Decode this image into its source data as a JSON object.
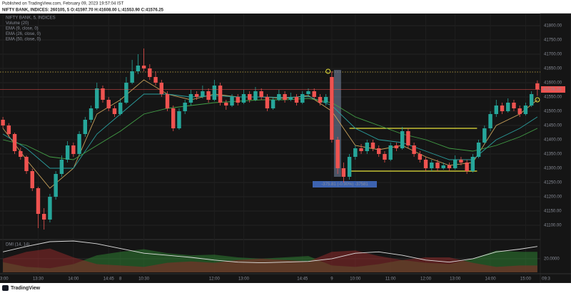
{
  "header": {
    "published": "Published on TradingView.com, February 09, 2023 19:57:04 IST",
    "symbol_line": "NIFTY BANK, INDICES: 260105, 5  O:41597.70 H:41608.00 L:41553.90 C:41576.25"
  },
  "footer": {
    "brand": "TradingView"
  },
  "chart_data": {
    "type": "candlestick",
    "legend": [
      "NIFTY BANK, 5, INDICES",
      "Volume (20)",
      "EMA (9, close, 0)",
      "EMA (26, close, 0)",
      "EMA (50, close, 0)"
    ],
    "up_color": "#26a69a",
    "down_color": "#ef5350",
    "ylim": [
      41050,
      41840
    ],
    "yticks": [
      {
        "value": 41100,
        "label": "41100.00"
      },
      {
        "value": 41150,
        "label": "41150.00"
      },
      {
        "value": 41200,
        "label": "41200.00"
      },
      {
        "value": 41250,
        "label": "41250.00"
      },
      {
        "value": 41300,
        "label": "41300.00"
      },
      {
        "value": 41350,
        "label": "41350.00"
      },
      {
        "value": 41400,
        "label": "41400.00"
      },
      {
        "value": 41450,
        "label": "41450.00"
      },
      {
        "value": 41500,
        "label": "41500.00"
      },
      {
        "value": 41550,
        "label": "41550.00"
      },
      {
        "value": 41600,
        "label": "41600.00"
      },
      {
        "value": 41650,
        "label": "41650.00"
      },
      {
        "value": 41700,
        "label": "41700.00"
      },
      {
        "value": 41750,
        "label": "41750.00"
      },
      {
        "value": 41800,
        "label": "41800.00"
      }
    ],
    "time_labels": [
      "13:00",
      "13:30",
      "14:00",
      "14:45",
      "8",
      "10:30",
      "12:00",
      "13:00",
      "14:45",
      "9",
      "10:00",
      "11:00",
      "12:00",
      "13:00",
      "14:00",
      "15:00",
      "09:3"
    ],
    "candles": [
      [
        41470,
        41480,
        41440,
        41450
      ],
      [
        41450,
        41458,
        41410,
        41420
      ],
      [
        41420,
        41425,
        41350,
        41360
      ],
      [
        41360,
        41372,
        41330,
        41340
      ],
      [
        41340,
        41345,
        41280,
        41290
      ],
      [
        41290,
        41298,
        41220,
        41230
      ],
      [
        41230,
        41235,
        41090,
        41140
      ],
      [
        41140,
        41160,
        41085,
        41120
      ],
      [
        41120,
        41210,
        41110,
        41200
      ],
      [
        41200,
        41290,
        41190,
        41280
      ],
      [
        41280,
        41345,
        41270,
        41330
      ],
      [
        41330,
        41395,
        41320,
        41380
      ],
      [
        41380,
        41390,
        41340,
        41350
      ],
      [
        41350,
        41430,
        41345,
        41420
      ],
      [
        41420,
        41480,
        41410,
        41470
      ],
      [
        41470,
        41520,
        41460,
        41510
      ],
      [
        41510,
        41600,
        41505,
        41580
      ],
      [
        41580,
        41590,
        41530,
        41540
      ],
      [
        41540,
        41550,
        41500,
        41510
      ],
      [
        41510,
        41520,
        41480,
        41490
      ],
      [
        41490,
        41545,
        41485,
        41530
      ],
      [
        41530,
        41620,
        41525,
        41600
      ],
      [
        41600,
        41680,
        41595,
        41640
      ],
      [
        41640,
        41700,
        41630,
        41660
      ],
      [
        41660,
        41720,
        41640,
        41650
      ],
      [
        41650,
        41665,
        41610,
        41620
      ],
      [
        41620,
        41640,
        41590,
        41600
      ],
      [
        41600,
        41610,
        41550,
        41560
      ],
      [
        41560,
        41570,
        41500,
        41510
      ],
      [
        41510,
        41520,
        41430,
        41440
      ],
      [
        41440,
        41510,
        41435,
        41500
      ],
      [
        41500,
        41540,
        41490,
        41530
      ],
      [
        41530,
        41575,
        41520,
        41560
      ],
      [
        41560,
        41570,
        41540,
        41550
      ],
      [
        41550,
        41590,
        41545,
        41570
      ],
      [
        41570,
        41580,
        41530,
        41540
      ],
      [
        41540,
        41610,
        41535,
        41590
      ],
      [
        41590,
        41600,
        41520,
        41530
      ],
      [
        41530,
        41540,
        41505,
        41520
      ],
      [
        41520,
        41560,
        41515,
        41550
      ],
      [
        41550,
        41560,
        41520,
        41530
      ],
      [
        41530,
        41575,
        41525,
        41560
      ],
      [
        41560,
        41570,
        41530,
        41540
      ],
      [
        41540,
        41585,
        41535,
        41570
      ],
      [
        41570,
        41580,
        41540,
        41550
      ],
      [
        41550,
        41560,
        41500,
        41510
      ],
      [
        41510,
        41550,
        41505,
        41540
      ],
      [
        41540,
        41575,
        41535,
        41560
      ],
      [
        41560,
        41570,
        41530,
        41540
      ],
      [
        41540,
        41565,
        41535,
        41550
      ],
      [
        41550,
        41560,
        41520,
        41530
      ],
      [
        41530,
        41570,
        41525,
        41560
      ],
      [
        41560,
        41580,
        41550,
        41570
      ],
      [
        41570,
        41580,
        41540,
        41550
      ],
      [
        41550,
        41560,
        41520,
        41530
      ],
      [
        41530,
        41560,
        41520,
        41550
      ],
      [
        41620,
        41640,
        41390,
        41400
      ],
      [
        41400,
        41410,
        41280,
        41300
      ],
      [
        41300,
        41320,
        41250,
        41270
      ],
      [
        41270,
        41350,
        41260,
        41340
      ],
      [
        41340,
        41380,
        41330,
        41370
      ],
      [
        41370,
        41385,
        41350,
        41360
      ],
      [
        41360,
        41400,
        41350,
        41390
      ],
      [
        41390,
        41400,
        41360,
        41370
      ],
      [
        41370,
        41380,
        41340,
        41350
      ],
      [
        41350,
        41360,
        41320,
        41330
      ],
      [
        41330,
        41390,
        41325,
        41380
      ],
      [
        41380,
        41390,
        41360,
        41370
      ],
      [
        41370,
        41445,
        41365,
        41430
      ],
      [
        41430,
        41440,
        41370,
        41380
      ],
      [
        41380,
        41390,
        41340,
        41350
      ],
      [
        41350,
        41360,
        41320,
        41330
      ],
      [
        41330,
        41340,
        41290,
        41300
      ],
      [
        41300,
        41330,
        41290,
        41320
      ],
      [
        41320,
        41330,
        41290,
        41300
      ],
      [
        41300,
        41320,
        41295,
        41310
      ],
      [
        41310,
        41320,
        41290,
        41300
      ],
      [
        41300,
        41345,
        41295,
        41330
      ],
      [
        41330,
        41340,
        41310,
        41320
      ],
      [
        41320,
        41330,
        41280,
        41290
      ],
      [
        41290,
        41350,
        41285,
        41340
      ],
      [
        41340,
        41400,
        41335,
        41390
      ],
      [
        41390,
        41450,
        41385,
        41440
      ],
      [
        41440,
        41500,
        41430,
        41490
      ],
      [
        41490,
        41540,
        41480,
        41520
      ],
      [
        41520,
        41530,
        41490,
        41500
      ],
      [
        41500,
        41545,
        41495,
        41530
      ],
      [
        41530,
        41540,
        41500,
        41510
      ],
      [
        41510,
        41520,
        41480,
        41490
      ],
      [
        41490,
        41530,
        41485,
        41520
      ],
      [
        41520,
        41570,
        41515,
        41560
      ],
      [
        41597.7,
        41608,
        41553.9,
        41576.25
      ]
    ],
    "series": [
      {
        "color": "#c9a15a",
        "values": [
          41440,
          41330,
          41230,
          41300,
          41490,
          41540,
          41610,
          41560,
          41540,
          41560,
          41550,
          41550,
          41545,
          41555,
          41500,
          41380,
          41365,
          41380,
          41340,
          41310,
          41320,
          41450,
          41490,
          41540
        ]
      },
      {
        "color": "#2a9d9d",
        "values": [
          41420,
          41370,
          41300,
          41300,
          41420,
          41490,
          41560,
          41560,
          41550,
          41555,
          41550,
          41550,
          41548,
          41552,
          41520,
          41440,
          41400,
          41390,
          41360,
          41330,
          41330,
          41400,
          41440,
          41480
        ]
      },
      {
        "color": "#43a047",
        "values": [
          41400,
          41380,
          41340,
          41330,
          41380,
          41430,
          41490,
          41510,
          41520,
          41530,
          41535,
          41540,
          41540,
          41545,
          41530,
          41480,
          41450,
          41420,
          41400,
          41370,
          41360,
          41380,
          41410,
          41440
        ]
      }
    ],
    "annotations": {
      "levels": [
        41440,
        41290
      ],
      "alert_level": 41637.5,
      "measure_range": [
        41645,
        41270
      ],
      "measure_label": "-375.81 (-0.90%) -37581"
    },
    "dmi": {
      "title": "DMI (14, 14)",
      "ylim": [
        0,
        45
      ],
      "yticks": [
        {
          "value": 20,
          "label": "20.0000"
        }
      ],
      "series": [
        {
          "color": "#2e7d32",
          "values": [
            15,
            8,
            6,
            12,
            25,
            30,
            34,
            28,
            25,
            26,
            22,
            20,
            22,
            24,
            10,
            8,
            12,
            18,
            14,
            12,
            20,
            32,
            30,
            30
          ]
        },
        {
          "color": "#8e2a2a",
          "values": [
            20,
            30,
            35,
            22,
            12,
            10,
            8,
            14,
            16,
            14,
            18,
            20,
            18,
            16,
            30,
            32,
            24,
            18,
            22,
            22,
            14,
            8,
            10,
            10
          ]
        },
        {
          "color": "#e0e0e0",
          "values": [
            30,
            38,
            45,
            46,
            42,
            35,
            28,
            25,
            22,
            18,
            15,
            14,
            15,
            16,
            20,
            28,
            30,
            25,
            18,
            15,
            20,
            30,
            34,
            38
          ]
        }
      ]
    }
  }
}
